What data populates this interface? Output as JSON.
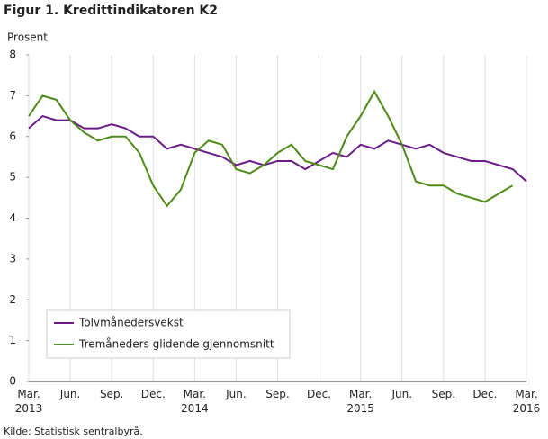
{
  "chart_data": {
    "type": "line",
    "title": "Figur 1. Kredittindikatoren K2",
    "y_label": "Prosent",
    "source": "Kilde: Statistisk sentralbyrå.",
    "categories": [
      "Mar. 2013",
      null,
      null,
      "Jun.",
      null,
      null,
      "Sep.",
      null,
      null,
      "Dec.",
      null,
      null,
      "Mar. 2014",
      null,
      null,
      "Jun.",
      null,
      null,
      "Sep.",
      null,
      null,
      "Dec.",
      null,
      null,
      "Mar. 2015",
      null,
      null,
      "Jun.",
      null,
      null,
      "Sep.",
      null,
      null,
      "Dec.",
      null,
      null,
      "Mar. 2016"
    ],
    "series": [
      {
        "name": "Tolvmånedersvekst",
        "color": "#6a1b8a",
        "values": [
          6.2,
          6.5,
          6.4,
          6.4,
          6.2,
          6.2,
          6.3,
          6.2,
          6.0,
          6.0,
          5.7,
          5.8,
          5.7,
          5.6,
          5.5,
          5.3,
          5.4,
          5.3,
          5.4,
          5.4,
          5.2,
          5.4,
          5.6,
          5.5,
          5.8,
          5.7,
          5.9,
          5.8,
          5.7,
          5.8,
          5.6,
          5.5,
          5.4,
          5.4,
          5.3,
          5.2,
          4.9
        ]
      },
      {
        "name": "Tremåneders glidende gjennomsnitt",
        "color": "#4e8a16",
        "values": [
          6.5,
          7.0,
          6.9,
          6.4,
          6.1,
          5.9,
          6.0,
          6.0,
          5.6,
          4.8,
          4.3,
          4.7,
          5.6,
          5.9,
          5.8,
          5.2,
          5.1,
          5.3,
          5.6,
          5.8,
          5.4,
          5.3,
          5.2,
          6.0,
          6.5,
          7.1,
          6.5,
          5.8,
          4.9,
          4.8,
          4.8,
          4.6,
          4.5,
          4.4,
          4.6,
          4.8,
          null
        ]
      }
    ],
    "ylim": [
      0,
      8
    ],
    "yticks": [
      0,
      1,
      2,
      3,
      4,
      5,
      6,
      7,
      8
    ],
    "grid": "x",
    "legend": "lower-left"
  }
}
